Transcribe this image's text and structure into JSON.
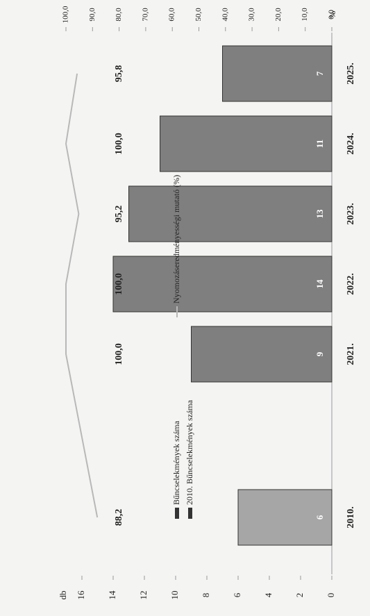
{
  "chart_data": {
    "type": "bar",
    "categories": [
      "2010.",
      "2021.",
      "2022.",
      "2023.",
      "2024.",
      "2025."
    ],
    "series": [
      {
        "name": "Bűncselekmények száma",
        "type": "bar",
        "color": "#7f7f7f",
        "values": [
          null,
          9,
          14,
          13,
          11,
          7
        ]
      },
      {
        "name": "2010. Bűncselekmények száma",
        "type": "bar",
        "color": "#a6a6a6",
        "values": [
          6,
          null,
          null,
          null,
          null,
          null
        ]
      },
      {
        "name": "Nyomozáseredményességi mutató (%)",
        "type": "line",
        "axis": "y2",
        "color": "#b8b8b8",
        "values": [
          88.2,
          100,
          100,
          95.2,
          100,
          95.8
        ],
        "value_labels": [
          "88,2",
          "100,0",
          "100,0",
          "95,2",
          "100,0",
          "95,8"
        ]
      }
    ],
    "y_label": "db",
    "y2_label": "%",
    "ylim": [
      0,
      16
    ],
    "yticks": [
      0,
      2,
      4,
      6,
      8,
      10,
      12,
      14,
      16
    ],
    "y2lim": [
      0,
      100
    ],
    "y2ticks": [
      {
        "value": 0,
        "label": "0,0"
      },
      {
        "value": 10,
        "label": "10,0"
      },
      {
        "value": 20,
        "label": "20,0"
      },
      {
        "value": 30,
        "label": "30,0"
      },
      {
        "value": 40,
        "label": "40,0"
      },
      {
        "value": 50,
        "label": "50,0"
      },
      {
        "value": 60,
        "label": "60,0"
      },
      {
        "value": 70,
        "label": "70,0"
      },
      {
        "value": 80,
        "label": "80,0"
      },
      {
        "value": 90,
        "label": "90,0"
      },
      {
        "value": 100,
        "label": "100,0"
      }
    ]
  }
}
